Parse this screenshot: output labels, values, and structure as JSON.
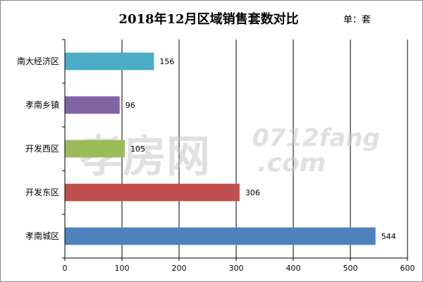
{
  "watermark": {
    "logo": "孝房网",
    "site": "0712fang",
    "domain": ".com"
  },
  "chart_data": {
    "type": "bar",
    "orientation": "horizontal",
    "title": "2018年12月区域销售套数对比",
    "unit_label": "单：套",
    "categories": [
      "南大经济区",
      "孝南乡镇",
      "开发西区",
      "开发东区",
      "孝南城区"
    ],
    "values": [
      156,
      96,
      105,
      306,
      544
    ],
    "bar_colors": [
      "#4bacc6",
      "#8064a2",
      "#9bbb59",
      "#c0504d",
      "#4f81bd"
    ],
    "xlim": [
      0,
      600
    ],
    "x_ticks": [
      0,
      100,
      200,
      300,
      400,
      500,
      600
    ],
    "grid": true,
    "legend": "none"
  }
}
